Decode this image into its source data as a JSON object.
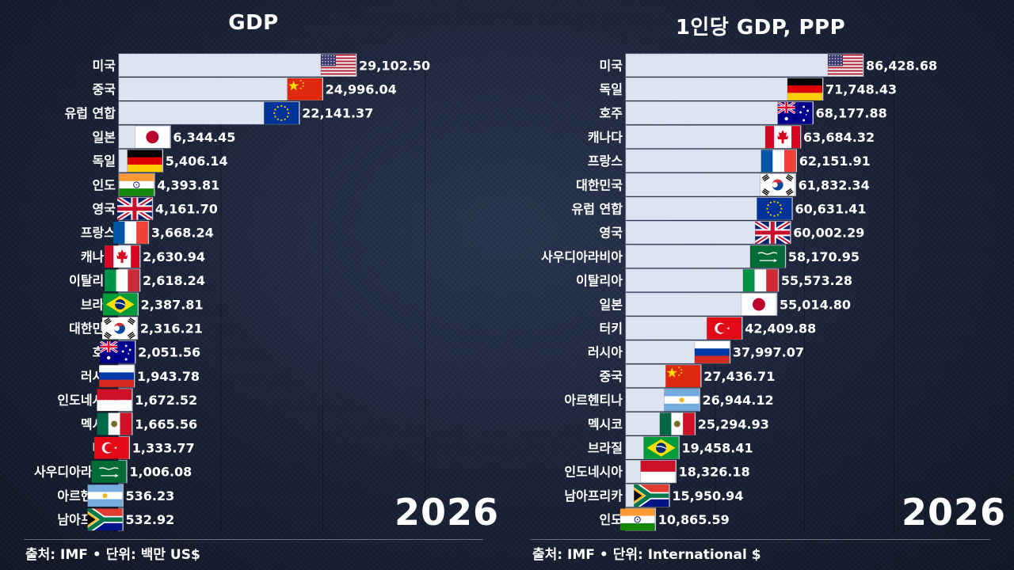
{
  "chart_data": [
    {
      "type": "bar",
      "orientation": "horizontal",
      "title": "GDP",
      "year_label": "2026",
      "source_label": "출처: IMF",
      "unit_label": "단위: 백만 US$",
      "xlim": [
        0,
        50000
      ],
      "categories": [
        "미국",
        "중국",
        "유럽 연합",
        "일본",
        "독일",
        "인도",
        "영국",
        "프랑스",
        "캐나다",
        "이탈리아",
        "브라질",
        "대한민국",
        "호주",
        "러시아",
        "인도네시아",
        "멕시코",
        "터키",
        "사우디아라비아",
        "아르헨티나",
        "남아프리카"
      ],
      "values": [
        29102.5,
        24996.04,
        22141.37,
        6344.45,
        5406.14,
        4393.81,
        4161.7,
        3668.24,
        2630.94,
        2618.24,
        2387.81,
        2316.21,
        2051.56,
        1943.78,
        1672.52,
        1665.56,
        1333.77,
        1006.08,
        536.23,
        532.92
      ],
      "value_labels": [
        "29,102.50",
        "24,996.04",
        "22,141.37",
        "6,344.45",
        "5,406.14",
        "4,393.81",
        "4,161.70",
        "3,668.24",
        "2,630.94",
        "2,618.24",
        "2,387.81",
        "2,316.21",
        "2,051.56",
        "1,943.78",
        "1,672.52",
        "1,665.56",
        "1,333.77",
        "1,006.08",
        "536.23",
        "532.92"
      ],
      "flags": [
        "us-flag",
        "cn-flag",
        "eu-flag",
        "jp-flag",
        "de-flag",
        "in-flag",
        "gb-flag",
        "fr-flag",
        "ca-flag",
        "it-flag",
        "br-flag",
        "kr-flag",
        "au-flag",
        "ru-flag",
        "id-flag",
        "mx-flag",
        "tr-flag",
        "sa-flag",
        "ar-flag",
        "za-flag"
      ]
    },
    {
      "type": "bar",
      "orientation": "horizontal",
      "title": "1인당 GDP, PPP",
      "year_label": "2026",
      "source_label": "출처: IMF",
      "unit_label": "단위: International $",
      "xlim": [
        0,
        130000
      ],
      "categories": [
        "미국",
        "독일",
        "호주",
        "캐나다",
        "프랑스",
        "대한민국",
        "유럽 연합",
        "영국",
        "사우디아라비아",
        "이탈리아",
        "일본",
        "터키",
        "러시아",
        "중국",
        "아르헨티나",
        "멕시코",
        "브라질",
        "인도네시아",
        "남아프리카",
        "인도"
      ],
      "values": [
        86428.68,
        71748.43,
        68177.88,
        63684.32,
        62151.91,
        61832.34,
        60631.41,
        60002.29,
        58170.95,
        55573.28,
        55014.8,
        42409.88,
        37997.07,
        27436.71,
        26944.12,
        25294.93,
        19458.41,
        18326.18,
        15950.94,
        10865.59
      ],
      "value_labels": [
        "86,428.68",
        "71,748.43",
        "68,177.88",
        "63,684.32",
        "62,151.91",
        "61,832.34",
        "60,631.41",
        "60,002.29",
        "58,170.95",
        "55,573.28",
        "55,014.80",
        "42,409.88",
        "37,997.07",
        "27,436.71",
        "26,944.12",
        "25,294.93",
        "19,458.41",
        "18,326.18",
        "15,950.94",
        "10,865.59"
      ],
      "flags": [
        "us-flag",
        "de-flag",
        "au-flag",
        "ca-flag",
        "fr-flag",
        "kr-flag",
        "eu-flag",
        "gb-flag",
        "sa-flag",
        "it-flag",
        "jp-flag",
        "tr-flag",
        "ru-flag",
        "cn-flag",
        "ar-flag",
        "mx-flag",
        "br-flag",
        "id-flag",
        "za-flag",
        "in-flag"
      ]
    }
  ],
  "colors": {
    "bar": "#dde3f0",
    "bar_edge": "#b9c2d6",
    "text": "#ffffff"
  }
}
